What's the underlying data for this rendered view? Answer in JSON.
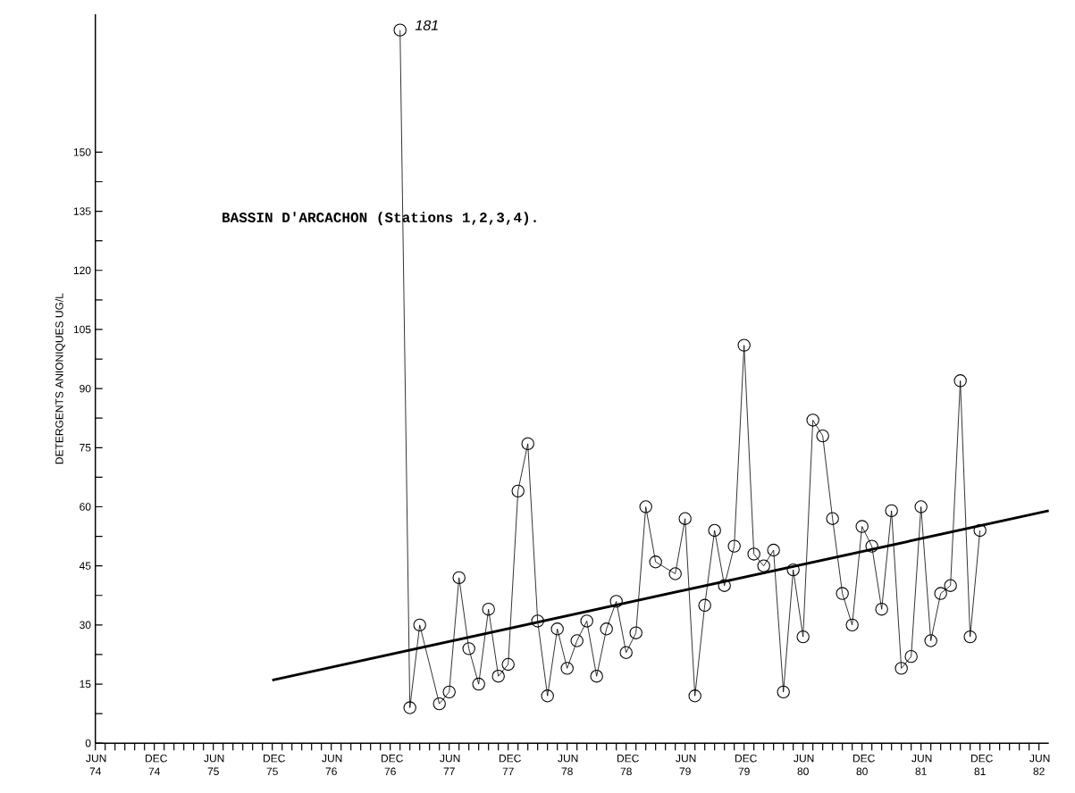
{
  "chart_data": {
    "type": "line",
    "title": "BASSIN D'ARCACHON (Stations 1,2,3,4).",
    "ylabel": "DETERGENTS ANIONIQUES  UG/L",
    "series": [
      {
        "marker": "circle",
        "color": "#000000",
        "x": [
          "1977-01",
          "1977-02",
          "1977-03",
          "1977-05",
          "1977-06",
          "1977-07",
          "1977-08",
          "1977-09",
          "1977-10",
          "1977-11",
          "1977-12",
          "1978-01",
          "1978-02",
          "1978-03",
          "1978-04",
          "1978-05",
          "1978-06",
          "1978-07",
          "1978-08",
          "1978-09",
          "1978-10",
          "1978-11",
          "1978-12",
          "1979-01",
          "1979-02",
          "1979-03",
          "1979-05",
          "1979-06",
          "1979-07",
          "1979-08",
          "1979-09",
          "1979-10",
          "1979-11",
          "1979-12",
          "1980-01",
          "1980-02",
          "1980-03",
          "1980-04",
          "1980-05",
          "1980-06",
          "1980-07",
          "1980-08",
          "1980-09",
          "1980-10",
          "1980-11",
          "1980-12",
          "1981-01",
          "1981-02",
          "1981-03",
          "1981-04",
          "1981-05",
          "1981-06",
          "1981-07",
          "1981-08",
          "1981-09",
          "1981-10",
          "1981-11",
          "1981-12"
        ],
        "values": [
          181,
          9,
          30,
          10,
          13,
          42,
          24,
          15,
          34,
          17,
          20,
          64,
          76,
          31,
          12,
          29,
          19,
          26,
          31,
          17,
          29,
          36,
          23,
          28,
          60,
          46,
          43,
          57,
          12,
          35,
          54,
          40,
          50,
          101,
          48,
          45,
          49,
          13,
          44,
          27,
          82,
          78,
          57,
          38,
          30,
          55,
          50,
          34,
          59,
          19,
          22,
          60,
          26,
          38,
          40,
          92,
          27,
          54
        ]
      },
      {
        "marker": "none",
        "color": "#000000",
        "x": [
          "1975-12",
          "1982-07"
        ],
        "values": [
          16,
          59
        ]
      }
    ],
    "xlim": [
      "1974-06",
      "1982-07"
    ],
    "ylim": [
      0,
      185
    ],
    "xticks": [
      {
        "value": "1974-06",
        "label": "JUN 74"
      },
      {
        "value": "1974-07",
        "label": null
      },
      {
        "value": "1974-08",
        "label": null
      },
      {
        "value": "1974-09",
        "label": null
      },
      {
        "value": "1974-10",
        "label": null
      },
      {
        "value": "1974-11",
        "label": null
      },
      {
        "value": "1974-12",
        "label": "DEC 74"
      },
      {
        "value": "1975-01",
        "label": null
      },
      {
        "value": "1975-02",
        "label": null
      },
      {
        "value": "1975-03",
        "label": null
      },
      {
        "value": "1975-04",
        "label": null
      },
      {
        "value": "1975-05",
        "label": null
      },
      {
        "value": "1975-06",
        "label": "JUN 75"
      },
      {
        "value": "1975-07",
        "label": null
      },
      {
        "value": "1975-08",
        "label": null
      },
      {
        "value": "1975-09",
        "label": null
      },
      {
        "value": "1975-10",
        "label": null
      },
      {
        "value": "1975-11",
        "label": null
      },
      {
        "value": "1975-12",
        "label": "DEC 75"
      },
      {
        "value": "1976-01",
        "label": null
      },
      {
        "value": "1976-02",
        "label": null
      },
      {
        "value": "1976-03",
        "label": null
      },
      {
        "value": "1976-04",
        "label": null
      },
      {
        "value": "1976-05",
        "label": null
      },
      {
        "value": "1976-06",
        "label": "JUN 76"
      },
      {
        "value": "1976-07",
        "label": null
      },
      {
        "value": "1976-08",
        "label": null
      },
      {
        "value": "1976-09",
        "label": null
      },
      {
        "value": "1976-10",
        "label": null
      },
      {
        "value": "1976-11",
        "label": null
      },
      {
        "value": "1976-12",
        "label": "DEC 76"
      },
      {
        "value": "1977-01",
        "label": null
      },
      {
        "value": "1977-02",
        "label": null
      },
      {
        "value": "1977-03",
        "label": null
      },
      {
        "value": "1977-04",
        "label": null
      },
      {
        "value": "1977-05",
        "label": null
      },
      {
        "value": "1977-06",
        "label": "JUN 77"
      },
      {
        "value": "1977-07",
        "label": null
      },
      {
        "value": "1977-08",
        "label": null
      },
      {
        "value": "1977-09",
        "label": null
      },
      {
        "value": "1977-10",
        "label": null
      },
      {
        "value": "1977-11",
        "label": null
      },
      {
        "value": "1977-12",
        "label": "DEC 77"
      },
      {
        "value": "1978-01",
        "label": null
      },
      {
        "value": "1978-02",
        "label": null
      },
      {
        "value": "1978-03",
        "label": null
      },
      {
        "value": "1978-04",
        "label": null
      },
      {
        "value": "1978-05",
        "label": null
      },
      {
        "value": "1978-06",
        "label": "JUN 78"
      },
      {
        "value": "1978-07",
        "label": null
      },
      {
        "value": "1978-08",
        "label": null
      },
      {
        "value": "1978-09",
        "label": null
      },
      {
        "value": "1978-10",
        "label": null
      },
      {
        "value": "1978-11",
        "label": null
      },
      {
        "value": "1978-12",
        "label": "DEC 78"
      },
      {
        "value": "1979-01",
        "label": null
      },
      {
        "value": "1979-02",
        "label": null
      },
      {
        "value": "1979-03",
        "label": null
      },
      {
        "value": "1979-04",
        "label": null
      },
      {
        "value": "1979-05",
        "label": null
      },
      {
        "value": "1979-06",
        "label": "JUN 79"
      },
      {
        "value": "1979-07",
        "label": null
      },
      {
        "value": "1979-08",
        "label": null
      },
      {
        "value": "1979-09",
        "label": null
      },
      {
        "value": "1979-10",
        "label": null
      },
      {
        "value": "1979-11",
        "label": null
      },
      {
        "value": "1979-12",
        "label": "DEC 79"
      },
      {
        "value": "1980-01",
        "label": null
      },
      {
        "value": "1980-02",
        "label": null
      },
      {
        "value": "1980-03",
        "label": null
      },
      {
        "value": "1980-04",
        "label": null
      },
      {
        "value": "1980-05",
        "label": null
      },
      {
        "value": "1980-06",
        "label": "JUN 80"
      },
      {
        "value": "1980-07",
        "label": null
      },
      {
        "value": "1980-08",
        "label": null
      },
      {
        "value": "1980-09",
        "label": null
      },
      {
        "value": "1980-10",
        "label": null
      },
      {
        "value": "1980-11",
        "label": null
      },
      {
        "value": "1980-12",
        "label": "DEC 80"
      },
      {
        "value": "1981-01",
        "label": null
      },
      {
        "value": "1981-02",
        "label": null
      },
      {
        "value": "1981-03",
        "label": null
      },
      {
        "value": "1981-04",
        "label": null
      },
      {
        "value": "1981-05",
        "label": null
      },
      {
        "value": "1981-06",
        "label": "JUN 81"
      },
      {
        "value": "1981-07",
        "label": null
      },
      {
        "value": "1981-08",
        "label": null
      },
      {
        "value": "1981-09",
        "label": null
      },
      {
        "value": "1981-10",
        "label": null
      },
      {
        "value": "1981-11",
        "label": null
      },
      {
        "value": "1981-12",
        "label": "DEC 81"
      },
      {
        "value": "1982-01",
        "label": null
      },
      {
        "value": "1982-02",
        "label": null
      },
      {
        "value": "1982-03",
        "label": null
      },
      {
        "value": "1982-04",
        "label": null
      },
      {
        "value": "1982-05",
        "label": null
      },
      {
        "value": "1982-06",
        "label": "JUN 82"
      }
    ],
    "yticks": [
      0,
      {
        "value": 7.5,
        "label": null
      },
      15,
      {
        "value": 22.5,
        "label": null
      },
      30,
      {
        "value": 37.5,
        "label": null
      },
      45,
      {
        "value": 52.5,
        "label": null
      },
      60,
      {
        "value": 67.5,
        "label": null
      },
      75,
      {
        "value": 82.5,
        "label": null
      },
      90,
      {
        "value": 97.5,
        "label": null
      },
      105,
      {
        "value": 112.5,
        "label": null
      },
      120,
      {
        "value": 127.5,
        "label": null
      },
      135,
      {
        "value": 142.5,
        "label": null
      },
      150
    ],
    "annotations": [
      {
        "text": "181",
        "x": "1977-01",
        "y": 181
      }
    ]
  }
}
